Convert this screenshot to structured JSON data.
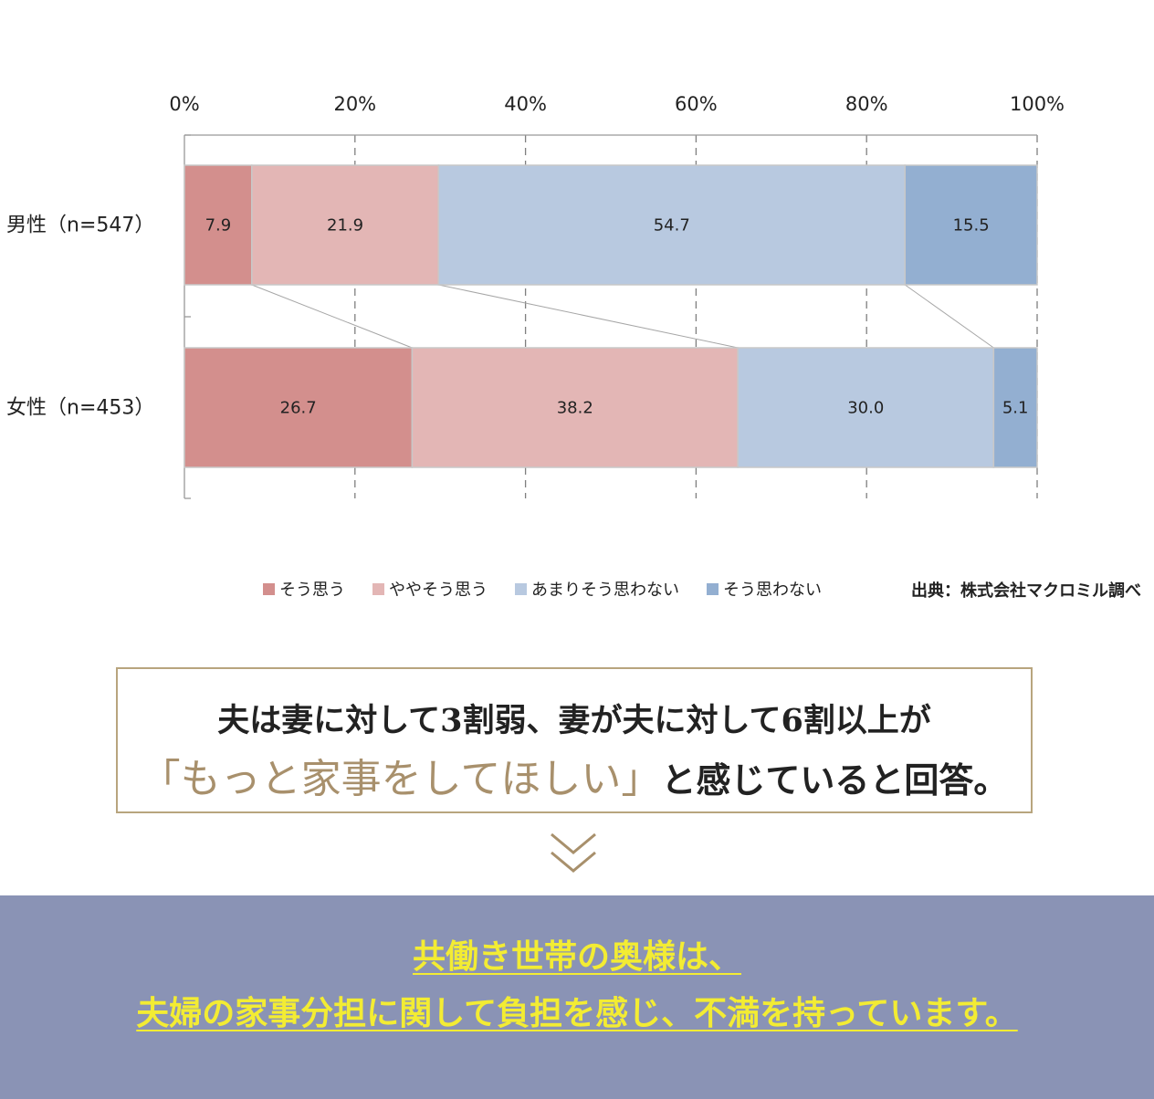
{
  "chart_data": {
    "type": "bar",
    "orientation": "horizontal",
    "stacked": "percent",
    "x_ticks": [
      "0%",
      "20%",
      "40%",
      "60%",
      "80%",
      "100%"
    ],
    "xlim": [
      0,
      100
    ],
    "categories": [
      "男性（n=547）",
      "女性（n=453）"
    ],
    "series": [
      {
        "name": "そう思う",
        "values": [
          7.9,
          26.7
        ],
        "color": "#d38f8d"
      },
      {
        "name": "ややそう思う",
        "values": [
          21.9,
          38.2
        ],
        "color": "#e3b6b5"
      },
      {
        "name": "あまりそう思わない",
        "values": [
          54.7,
          30.0
        ],
        "color": "#b8c9e0"
      },
      {
        "name": "そう思わない",
        "values": [
          15.5,
          5.1
        ],
        "color": "#93afd1"
      }
    ],
    "grid": true,
    "legend_position": "bottom"
  },
  "legend": {
    "items": [
      {
        "label": "そう思う",
        "color": "#d38f8d"
      },
      {
        "label": "ややそう思う",
        "color": "#e3b6b5"
      },
      {
        "label": "あまりそう思わない",
        "color": "#b8c9e0"
      },
      {
        "label": "そう思わない",
        "color": "#93afd1"
      }
    ]
  },
  "source": "出典：株式会社マクロミル調べ",
  "summary": {
    "line1": "夫は妻に対して3割弱、妻が夫に対して6割以上が",
    "highlight": "「もっと家事をしてほしい」",
    "line2_rest": "と感じていると回答。"
  },
  "conclusion": {
    "line1": "共働き世帯の奥様は、",
    "line2": "夫婦の家事分担に関して負担を感じ、不満を持っています。"
  },
  "colors": {
    "box_border": "#b8a57e",
    "highlight_text": "#a8906c",
    "band_background": "#8a93b5",
    "band_text": "#f3ec33"
  }
}
